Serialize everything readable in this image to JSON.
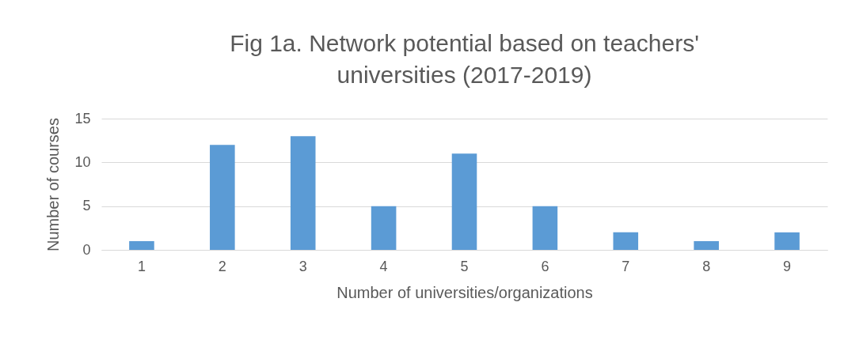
{
  "chart_data": {
    "type": "bar",
    "title": "Fig 1a. Network potential based on teachers' universities  (2017-2019)",
    "xlabel": "Number of universities/organizations",
    "ylabel": "Number of courses",
    "categories": [
      "1",
      "2",
      "3",
      "4",
      "5",
      "6",
      "7",
      "8",
      "9"
    ],
    "values": [
      1,
      12,
      13,
      5,
      11,
      5,
      2,
      1,
      2
    ],
    "color": "#5b9bd5",
    "ylim": [
      0,
      15
    ],
    "yticks": [
      0,
      5,
      10,
      15
    ],
    "grid": "y"
  }
}
